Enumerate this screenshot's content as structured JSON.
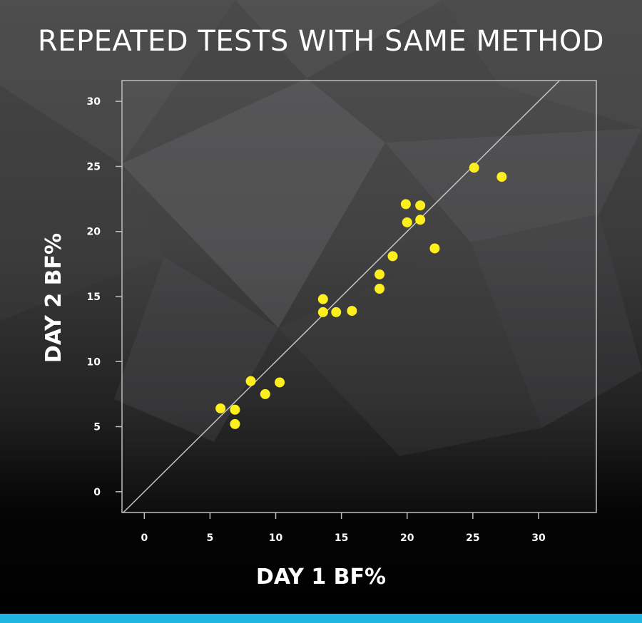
{
  "title": "REPEATED TESTS WITH SAME METHOD",
  "colors": {
    "point": "#fdee1e",
    "accent_bar": "#1fb6e0",
    "plot_border": "#bdbdbd",
    "identity_line": "#c4c4c4"
  },
  "chart_data": {
    "type": "scatter",
    "title": "REPEATED TESTS WITH SAME METHOD",
    "xlabel": "DAY 1 BF%",
    "ylabel": "DAY 2 BF%",
    "xlim": [
      -1.7,
      34.4
    ],
    "ylim": [
      -1.6,
      31.6
    ],
    "xticks": [
      0,
      5,
      10,
      15,
      20,
      25,
      30
    ],
    "yticks": [
      0,
      5,
      10,
      15,
      20,
      25,
      30
    ],
    "x_tick_labels": [
      "0",
      "5",
      "10",
      "15",
      "20",
      "25",
      "30"
    ],
    "y_tick_labels": [
      "0",
      "5",
      "10",
      "15",
      "20",
      "25",
      "30"
    ],
    "reference_line": "y = x",
    "grid": false,
    "legend": "none",
    "points": [
      {
        "x": 5.8,
        "y": 6.4
      },
      {
        "x": 6.9,
        "y": 6.3
      },
      {
        "x": 6.9,
        "y": 5.2
      },
      {
        "x": 8.1,
        "y": 8.5
      },
      {
        "x": 9.2,
        "y": 7.5
      },
      {
        "x": 10.3,
        "y": 8.4
      },
      {
        "x": 13.6,
        "y": 14.8
      },
      {
        "x": 13.6,
        "y": 13.8
      },
      {
        "x": 14.6,
        "y": 13.8
      },
      {
        "x": 15.8,
        "y": 13.9
      },
      {
        "x": 17.9,
        "y": 16.7
      },
      {
        "x": 17.9,
        "y": 15.6
      },
      {
        "x": 18.9,
        "y": 18.1
      },
      {
        "x": 19.9,
        "y": 22.1
      },
      {
        "x": 20.0,
        "y": 20.7
      },
      {
        "x": 21.0,
        "y": 22.0
      },
      {
        "x": 21.0,
        "y": 20.9
      },
      {
        "x": 22.1,
        "y": 18.7
      },
      {
        "x": 25.1,
        "y": 24.9
      },
      {
        "x": 27.2,
        "y": 24.2
      }
    ]
  }
}
